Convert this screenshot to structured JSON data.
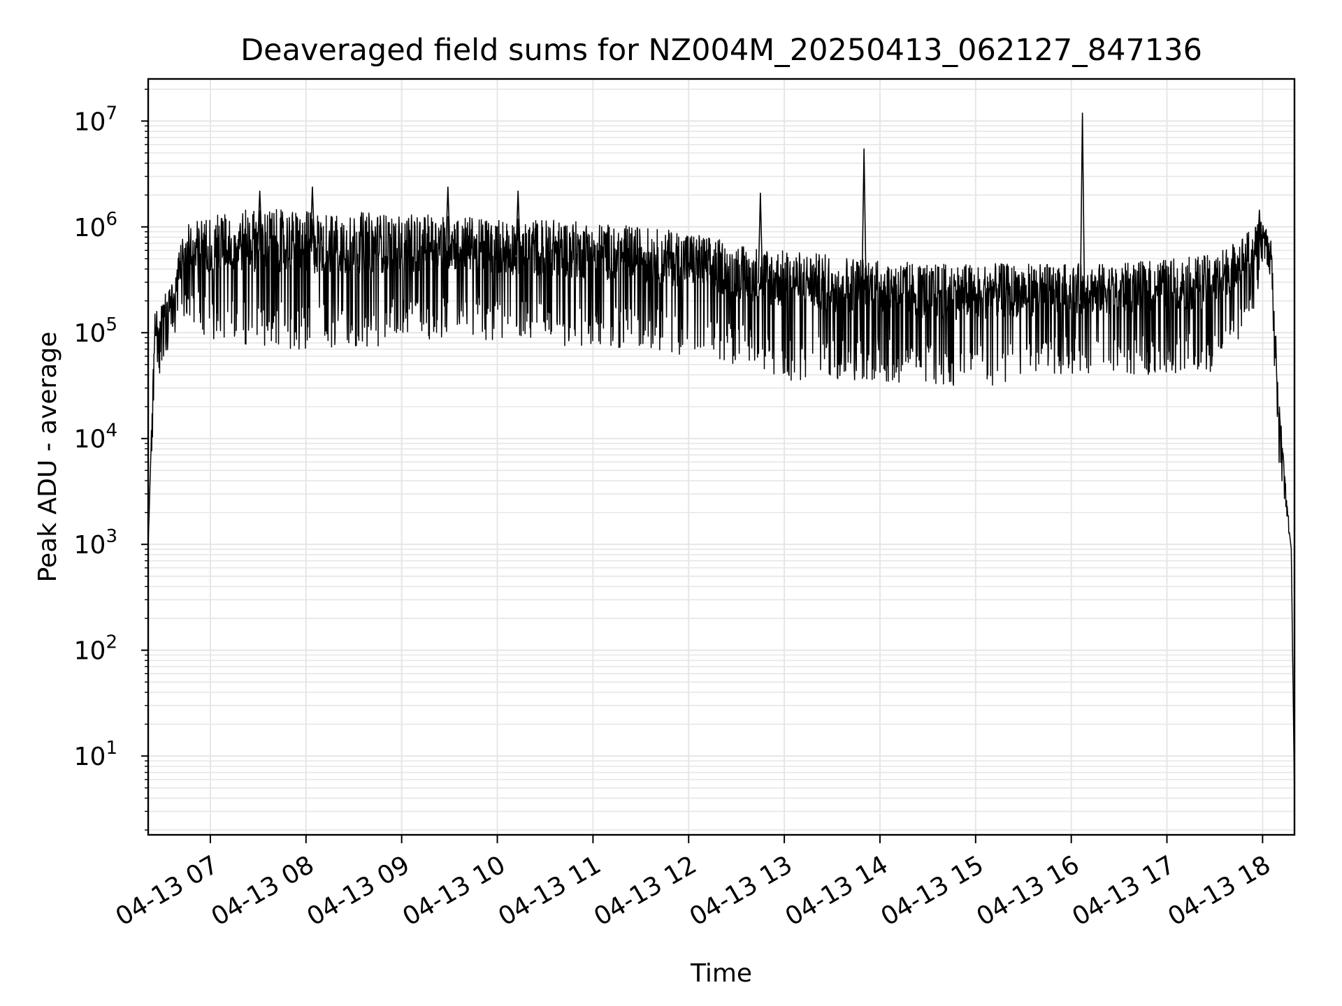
{
  "chart_data": {
    "type": "line",
    "title": "Deaveraged field sums for NZ004M_20250413_062127_847136",
    "xlabel": "Time",
    "ylabel": "Peak ADU - average",
    "yscale": "log",
    "ylim": [
      1.8,
      25000000
    ],
    "xlim": [
      "2025-04-13 06:21",
      "2025-04-13 18:20"
    ],
    "grid": true,
    "line_color": "#000000",
    "grid_color": "#e6e6e6",
    "x_ticks": [
      "04-13 07",
      "04-13 08",
      "04-13 09",
      "04-13 10",
      "04-13 11",
      "04-13 12",
      "04-13 13",
      "04-13 14",
      "04-13 15",
      "04-13 16",
      "04-13 17",
      "04-13 18"
    ],
    "y_ticks": [
      {
        "base": "10",
        "exp": "1",
        "value": 10
      },
      {
        "base": "10",
        "exp": "2",
        "value": 100
      },
      {
        "base": "10",
        "exp": "3",
        "value": 1000
      },
      {
        "base": "10",
        "exp": "4",
        "value": 10000
      },
      {
        "base": "10",
        "exp": "5",
        "value": 100000
      },
      {
        "base": "10",
        "exp": "6",
        "value": 1000000
      },
      {
        "base": "10",
        "exp": "7",
        "value": 10000000
      }
    ],
    "series": [
      {
        "envelope": {
          "time": [
            "06:21",
            "06:25",
            "06:35",
            "06:45",
            "07:00",
            "07:30",
            "08:00",
            "08:30",
            "09:00",
            "09:30",
            "10:00",
            "10:30",
            "11:00",
            "11:30",
            "12:00",
            "12:30",
            "13:00",
            "13:30",
            "14:00",
            "14:30",
            "15:00",
            "15:30",
            "16:00",
            "16:30",
            "17:00",
            "17:30",
            "17:55",
            "18:00",
            "18:05",
            "18:10",
            "18:15",
            "18:18",
            "18:20"
          ],
          "upper": [
            1000,
            150000,
            300000,
            1100000,
            1300000,
            1500000,
            1400000,
            1400000,
            1300000,
            1300000,
            1200000,
            1200000,
            1100000,
            1000000,
            900000,
            700000,
            600000,
            550000,
            500000,
            450000,
            450000,
            450000,
            450000,
            450000,
            500000,
            550000,
            1000000,
            1200000,
            900000,
            30000,
            3000,
            1000,
            4
          ],
          "lower": [
            1000,
            30000,
            80000,
            150000,
            80000,
            70000,
            65000,
            70000,
            80000,
            90000,
            80000,
            75000,
            70000,
            70000,
            60000,
            50000,
            35000,
            35000,
            35000,
            30000,
            30000,
            35000,
            40000,
            40000,
            40000,
            40000,
            150000,
            400000,
            300000,
            5000,
            1800,
            800,
            4
          ]
        },
        "spikes": [
          {
            "time": "07:31",
            "value": 2200000
          },
          {
            "time": "08:04",
            "value": 2400000
          },
          {
            "time": "09:29",
            "value": 2400000
          },
          {
            "time": "10:13",
            "value": 2200000
          },
          {
            "time": "12:45",
            "value": 2100000
          },
          {
            "time": "13:50",
            "value": 5500000
          },
          {
            "time": "16:07",
            "value": 12000000
          },
          {
            "time": "17:58",
            "value": 1450000
          }
        ]
      }
    ]
  }
}
